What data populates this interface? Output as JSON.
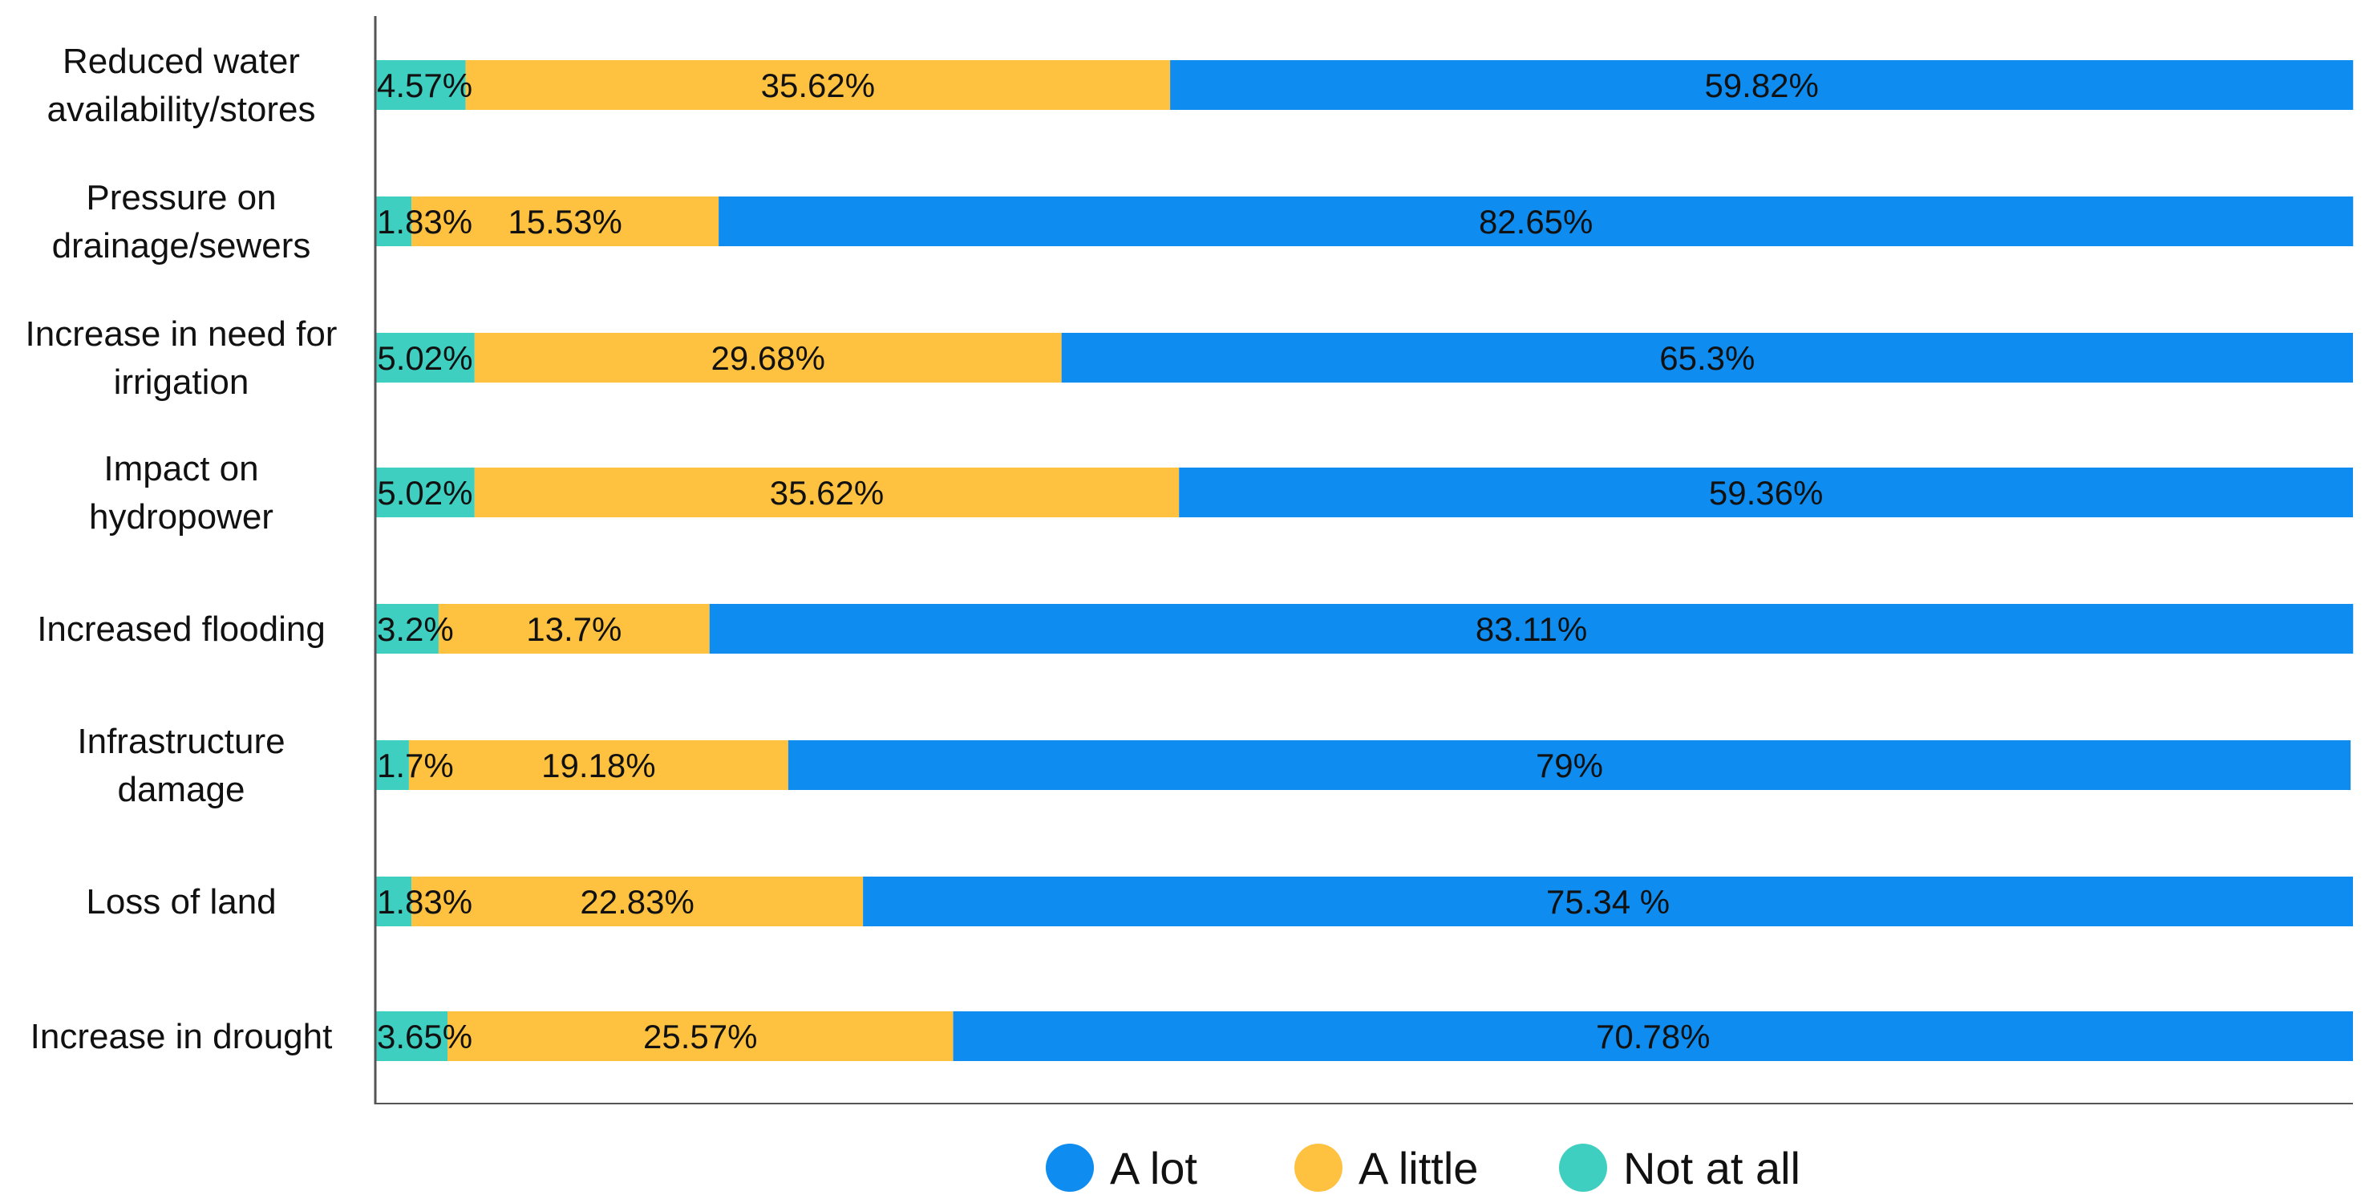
{
  "chart_data": {
    "type": "bar",
    "orientation": "horizontal",
    "stacked": true,
    "title": "",
    "xlabel": "",
    "ylabel": "",
    "xlim": [
      0,
      100
    ],
    "grid": false,
    "legend_position": "bottom",
    "categories": [
      [
        "Reduced water",
        "availability/stores"
      ],
      [
        "Pressure on",
        "drainage/sewers"
      ],
      [
        "Increase in need for",
        "irrigation"
      ],
      [
        "Impact on",
        "hydropower"
      ],
      [
        "Increased flooding"
      ],
      [
        "Infrastructure",
        "damage"
      ],
      [
        "Loss of land"
      ],
      [
        "Increase in drought"
      ]
    ],
    "series": [
      {
        "name": "Not at all",
        "color": "#3ecfc1",
        "values": [
          4.57,
          1.83,
          5.02,
          5.02,
          3.2,
          1.7,
          1.83,
          3.65
        ],
        "labels": [
          "4.57%",
          "1.83%",
          "5.02%",
          "5.02%",
          "3.2%",
          "1.7%",
          "1.83%",
          "3.65%"
        ]
      },
      {
        "name": "A little",
        "color": "#fec240",
        "values": [
          35.62,
          15.53,
          29.68,
          35.62,
          13.7,
          19.18,
          22.83,
          25.57
        ],
        "labels": [
          "35.62%",
          "15.53%",
          "29.68%",
          "35.62%",
          "13.7%",
          "19.18%",
          "22.83%",
          "25.57%"
        ]
      },
      {
        "name": "A lot",
        "color": "#0e8cf0",
        "values": [
          59.82,
          82.65,
          65.3,
          59.36,
          83.11,
          79,
          75.34,
          70.78
        ],
        "labels": [
          "59.82%",
          "82.65%",
          "65.3%",
          "59.36%",
          "83.11%",
          "79%",
          "75.34 %",
          "70.78%"
        ]
      }
    ],
    "legend": [
      "A lot",
      "A little",
      "Not at all"
    ]
  }
}
